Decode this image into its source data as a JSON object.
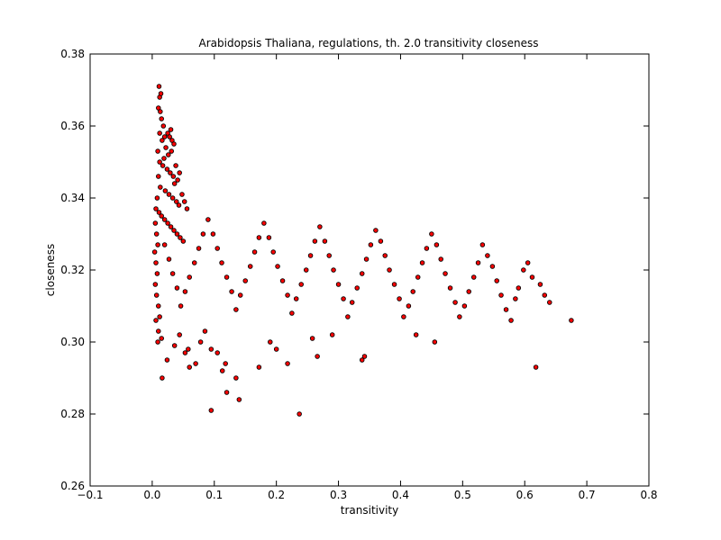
{
  "chart_data": {
    "type": "scatter",
    "title": "Arabidopsis Thaliana, regulations, th. 2.0 transitivity closeness",
    "xlabel": "transitivity",
    "ylabel": "closeness",
    "xlim": [
      -0.1,
      0.8
    ],
    "ylim": [
      0.26,
      0.38
    ],
    "xticks": [
      "−0.1",
      "0.0",
      "0.1",
      "0.2",
      "0.3",
      "0.4",
      "0.5",
      "0.6",
      "0.7",
      "0.8"
    ],
    "yticks": [
      "0.26",
      "0.28",
      "0.30",
      "0.32",
      "0.34",
      "0.36",
      "0.38"
    ],
    "grid": false,
    "legend": "none",
    "marker_fill": "#ff0000",
    "marker_edge": "#000000",
    "series": [
      {
        "points": [
          [
            0.011,
            0.371
          ],
          [
            0.012,
            0.368
          ],
          [
            0.014,
            0.369
          ],
          [
            0.01,
            0.365
          ],
          [
            0.013,
            0.364
          ],
          [
            0.015,
            0.362
          ],
          [
            0.018,
            0.36
          ],
          [
            0.012,
            0.358
          ],
          [
            0.02,
            0.357
          ],
          [
            0.016,
            0.356
          ],
          [
            0.025,
            0.358
          ],
          [
            0.03,
            0.359
          ],
          [
            0.028,
            0.357
          ],
          [
            0.032,
            0.356
          ],
          [
            0.022,
            0.354
          ],
          [
            0.009,
            0.353
          ],
          [
            0.019,
            0.351
          ],
          [
            0.026,
            0.352
          ],
          [
            0.035,
            0.355
          ],
          [
            0.031,
            0.353
          ],
          [
            0.012,
            0.35
          ],
          [
            0.017,
            0.349
          ],
          [
            0.024,
            0.348
          ],
          [
            0.029,
            0.347
          ],
          [
            0.034,
            0.346
          ],
          [
            0.038,
            0.349
          ],
          [
            0.041,
            0.345
          ],
          [
            0.044,
            0.347
          ],
          [
            0.036,
            0.344
          ],
          [
            0.01,
            0.346
          ],
          [
            0.013,
            0.343
          ],
          [
            0.021,
            0.342
          ],
          [
            0.027,
            0.341
          ],
          [
            0.033,
            0.34
          ],
          [
            0.039,
            0.339
          ],
          [
            0.043,
            0.338
          ],
          [
            0.048,
            0.341
          ],
          [
            0.052,
            0.339
          ],
          [
            0.056,
            0.337
          ],
          [
            0.008,
            0.34
          ],
          [
            0.006,
            0.337
          ],
          [
            0.011,
            0.336
          ],
          [
            0.015,
            0.335
          ],
          [
            0.02,
            0.334
          ],
          [
            0.025,
            0.333
          ],
          [
            0.03,
            0.332
          ],
          [
            0.035,
            0.331
          ],
          [
            0.04,
            0.33
          ],
          [
            0.045,
            0.329
          ],
          [
            0.05,
            0.328
          ],
          [
            0.005,
            0.333
          ],
          [
            0.007,
            0.33
          ],
          [
            0.009,
            0.327
          ],
          [
            0.004,
            0.325
          ],
          [
            0.006,
            0.322
          ],
          [
            0.008,
            0.319
          ],
          [
            0.005,
            0.316
          ],
          [
            0.007,
            0.313
          ],
          [
            0.01,
            0.31
          ],
          [
            0.012,
            0.307
          ],
          [
            0.006,
            0.306
          ],
          [
            0.01,
            0.303
          ],
          [
            0.009,
            0.3
          ],
          [
            0.015,
            0.301
          ],
          [
            0.016,
            0.29
          ],
          [
            0.024,
            0.295
          ],
          [
            0.036,
            0.299
          ],
          [
            0.044,
            0.302
          ],
          [
            0.053,
            0.297
          ],
          [
            0.06,
            0.293
          ],
          [
            0.07,
            0.294
          ],
          [
            0.058,
            0.298
          ],
          [
            0.078,
            0.3
          ],
          [
            0.085,
            0.303
          ],
          [
            0.095,
            0.298
          ],
          [
            0.105,
            0.297
          ],
          [
            0.113,
            0.292
          ],
          [
            0.118,
            0.294
          ],
          [
            0.12,
            0.286
          ],
          [
            0.135,
            0.29
          ],
          [
            0.14,
            0.284
          ],
          [
            0.095,
            0.281
          ],
          [
            0.172,
            0.293
          ],
          [
            0.19,
            0.3
          ],
          [
            0.2,
            0.298
          ],
          [
            0.218,
            0.294
          ],
          [
            0.237,
            0.28
          ],
          [
            0.258,
            0.301
          ],
          [
            0.266,
            0.296
          ],
          [
            0.29,
            0.302
          ],
          [
            0.338,
            0.295
          ],
          [
            0.342,
            0.296
          ],
          [
            0.425,
            0.302
          ],
          [
            0.455,
            0.3
          ],
          [
            0.618,
            0.293
          ],
          [
            0.675,
            0.306
          ],
          [
            0.64,
            0.311
          ],
          [
            0.632,
            0.313
          ],
          [
            0.625,
            0.316
          ],
          [
            0.612,
            0.318
          ],
          [
            0.605,
            0.322
          ],
          [
            0.598,
            0.32
          ],
          [
            0.59,
            0.315
          ],
          [
            0.585,
            0.312
          ],
          [
            0.578,
            0.306
          ],
          [
            0.57,
            0.309
          ],
          [
            0.562,
            0.313
          ],
          [
            0.555,
            0.317
          ],
          [
            0.548,
            0.321
          ],
          [
            0.54,
            0.324
          ],
          [
            0.532,
            0.327
          ],
          [
            0.525,
            0.322
          ],
          [
            0.518,
            0.318
          ],
          [
            0.51,
            0.314
          ],
          [
            0.503,
            0.31
          ],
          [
            0.495,
            0.307
          ],
          [
            0.488,
            0.311
          ],
          [
            0.48,
            0.315
          ],
          [
            0.472,
            0.319
          ],
          [
            0.465,
            0.323
          ],
          [
            0.458,
            0.327
          ],
          [
            0.45,
            0.33
          ],
          [
            0.442,
            0.326
          ],
          [
            0.435,
            0.322
          ],
          [
            0.428,
            0.318
          ],
          [
            0.42,
            0.314
          ],
          [
            0.413,
            0.31
          ],
          [
            0.405,
            0.307
          ],
          [
            0.398,
            0.312
          ],
          [
            0.39,
            0.316
          ],
          [
            0.382,
            0.32
          ],
          [
            0.375,
            0.324
          ],
          [
            0.368,
            0.328
          ],
          [
            0.36,
            0.331
          ],
          [
            0.352,
            0.327
          ],
          [
            0.345,
            0.323
          ],
          [
            0.338,
            0.319
          ],
          [
            0.33,
            0.315
          ],
          [
            0.322,
            0.311
          ],
          [
            0.315,
            0.307
          ],
          [
            0.308,
            0.312
          ],
          [
            0.3,
            0.316
          ],
          [
            0.292,
            0.32
          ],
          [
            0.285,
            0.324
          ],
          [
            0.278,
            0.328
          ],
          [
            0.27,
            0.332
          ],
          [
            0.262,
            0.328
          ],
          [
            0.255,
            0.324
          ],
          [
            0.248,
            0.32
          ],
          [
            0.24,
            0.316
          ],
          [
            0.232,
            0.312
          ],
          [
            0.225,
            0.308
          ],
          [
            0.218,
            0.313
          ],
          [
            0.21,
            0.317
          ],
          [
            0.202,
            0.321
          ],
          [
            0.195,
            0.325
          ],
          [
            0.188,
            0.329
          ],
          [
            0.18,
            0.333
          ],
          [
            0.172,
            0.329
          ],
          [
            0.165,
            0.325
          ],
          [
            0.158,
            0.321
          ],
          [
            0.15,
            0.317
          ],
          [
            0.142,
            0.313
          ],
          [
            0.135,
            0.309
          ],
          [
            0.128,
            0.314
          ],
          [
            0.12,
            0.318
          ],
          [
            0.112,
            0.322
          ],
          [
            0.105,
            0.326
          ],
          [
            0.098,
            0.33
          ],
          [
            0.09,
            0.334
          ],
          [
            0.082,
            0.33
          ],
          [
            0.075,
            0.326
          ],
          [
            0.068,
            0.322
          ],
          [
            0.06,
            0.318
          ],
          [
            0.053,
            0.314
          ],
          [
            0.046,
            0.31
          ],
          [
            0.04,
            0.315
          ],
          [
            0.033,
            0.319
          ],
          [
            0.027,
            0.323
          ],
          [
            0.02,
            0.327
          ]
        ]
      }
    ]
  }
}
